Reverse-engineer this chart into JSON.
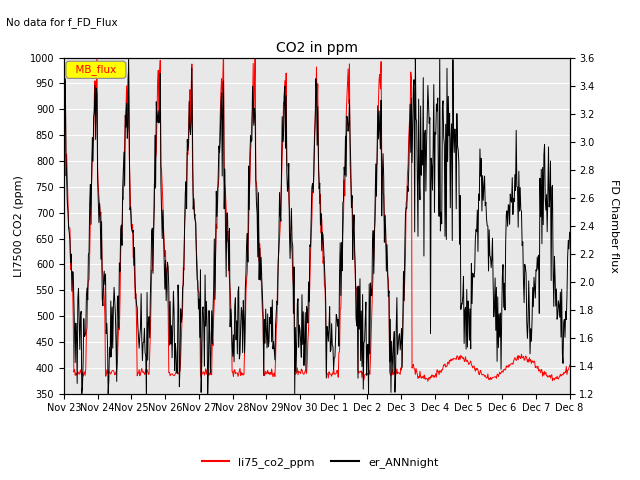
{
  "title": "CO2 in ppm",
  "top_left_text": "No data for f_FD_Flux",
  "ylabel_left": "LI7500 CO2 (ppm)",
  "ylabel_right": "FD Chamber flux",
  "ylim_left": [
    350,
    1000
  ],
  "ylim_right": [
    1.2,
    3.6
  ],
  "yticks_left": [
    350,
    400,
    450,
    500,
    550,
    600,
    650,
    700,
    750,
    800,
    850,
    900,
    950,
    1000
  ],
  "yticks_right": [
    1.2,
    1.4,
    1.6,
    1.8,
    2.0,
    2.2,
    2.4,
    2.6,
    2.8,
    3.0,
    3.2,
    3.4,
    3.6
  ],
  "xtick_labels": [
    "Nov 23",
    "Nov 24",
    "Nov 25",
    "Nov 26",
    "Nov 27",
    "Nov 28",
    "Nov 29",
    "Nov 30",
    "Dec 1",
    "Dec 2",
    "Dec 3",
    "Dec 4",
    "Dec 5",
    "Dec 6",
    "Dec 7",
    "Dec 8"
  ],
  "legend_entries": [
    "li75_co2_ppm",
    "er_ANNnight"
  ],
  "legend_box_label": "MB_flux",
  "legend_box_color": "#FFFF00",
  "legend_box_text_color": "red",
  "line_color_red": "#FF0000",
  "line_color_black": "#000000",
  "background_color": "#e8e8e8",
  "title_fontsize": 10,
  "axis_label_fontsize": 8,
  "tick_fontsize": 7,
  "legend_fontsize": 8
}
